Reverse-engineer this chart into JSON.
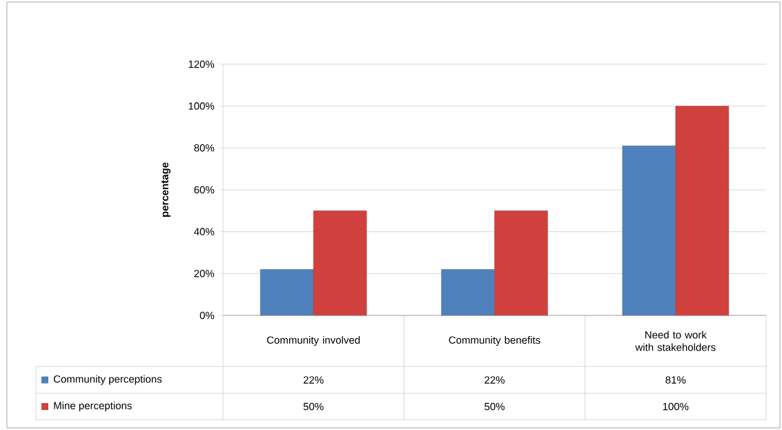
{
  "chart_data": {
    "type": "bar",
    "ylabel": "percentage",
    "categories": [
      "Community involved",
      "Community benefits",
      "Need to work with stakeholders"
    ],
    "series": [
      {
        "name": "Community perceptions",
        "color": "#4f81bd",
        "values": [
          22,
          22,
          81
        ],
        "value_labels": [
          "22%",
          "22%",
          "81%"
        ]
      },
      {
        "name": "Mine perceptions",
        "color": "#d0413e",
        "values": [
          50,
          50,
          100
        ],
        "value_labels": [
          "50%",
          "50%",
          "100%"
        ]
      }
    ],
    "ylim": [
      0,
      120
    ],
    "yticks": [
      {
        "value": 0,
        "label": "0%"
      },
      {
        "value": 20,
        "label": "20%"
      },
      {
        "value": 40,
        "label": "40%"
      },
      {
        "value": 60,
        "label": "60%"
      },
      {
        "value": 80,
        "label": "80%"
      },
      {
        "value": 100,
        "label": "100%"
      },
      {
        "value": 120,
        "label": "120%"
      }
    ],
    "grid": "y",
    "legend": "bottom"
  }
}
